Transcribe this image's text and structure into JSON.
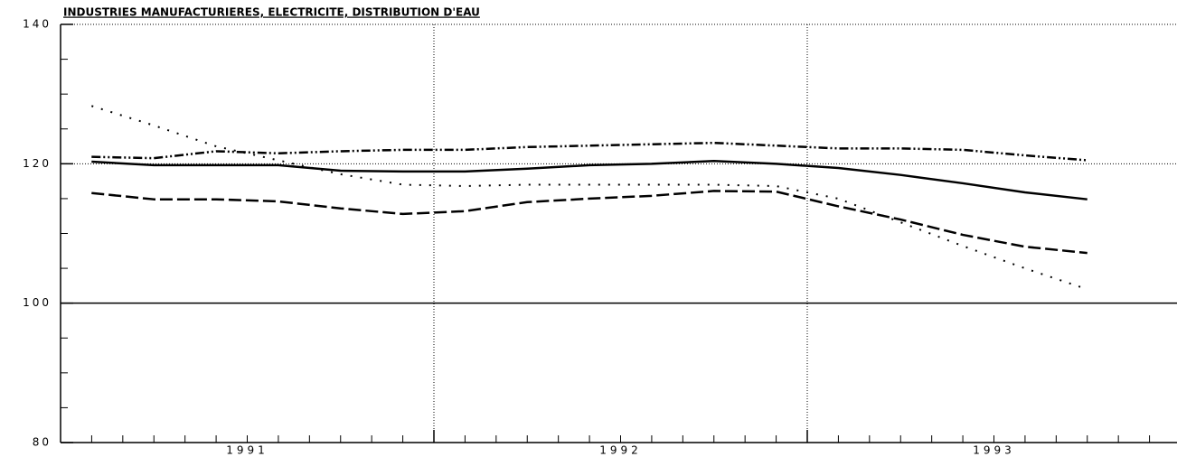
{
  "chart_data": {
    "type": "line",
    "title": "INDUSTRIES MANUFACTURIERES, ELECTRICITE, DISTRIBUTION D'EAU",
    "x": [
      1991.083,
      1991.25,
      1991.417,
      1991.583,
      1991.75,
      1991.917,
      1992.083,
      1992.25,
      1992.417,
      1992.583,
      1992.75,
      1992.917,
      1993.083,
      1993.25,
      1993.417,
      1993.583,
      1993.75
    ],
    "series": [
      {
        "color": "#000000",
        "dash": "solid",
        "values": [
          120.3,
          119.8,
          119.8,
          119.8,
          119.0,
          118.9,
          118.9,
          119.3,
          119.8,
          120.0,
          120.4,
          120.0,
          119.4,
          118.4,
          117.2,
          115.9,
          114.9
        ]
      },
      {
        "color": "#000000",
        "dash": "dashed",
        "values": [
          115.8,
          114.9,
          114.9,
          114.6,
          113.6,
          112.8,
          113.2,
          114.5,
          115.0,
          115.4,
          116.1,
          116.0,
          113.9,
          112.0,
          109.8,
          108.1,
          107.2
        ]
      },
      {
        "color": "#000000",
        "dash": "dashdotdot",
        "values": [
          121.0,
          120.8,
          121.8,
          121.5,
          121.8,
          122.0,
          122.0,
          122.4,
          122.6,
          122.8,
          123.0,
          122.6,
          122.2,
          122.2,
          122.0,
          121.2,
          120.5
        ]
      },
      {
        "color": "#000000",
        "dash": "dotted",
        "values": [
          128.3,
          125.5,
          122.5,
          120.5,
          118.5,
          117.0,
          116.8,
          117.0,
          117.0,
          117.0,
          117.0,
          116.8,
          115.0,
          111.6,
          108.2,
          105.0,
          102.0
        ]
      }
    ],
    "xlim": [
      1991,
      1994
    ],
    "xticks": [
      {
        "value": 1991.5,
        "label": "1991"
      },
      {
        "value": 1992.5,
        "label": "1992"
      },
      {
        "value": 1993.5,
        "label": "1993"
      }
    ],
    "xgrid": [
      1992,
      1993
    ],
    "ylim": [
      80,
      140
    ],
    "yticks": [
      80,
      100,
      120,
      140
    ],
    "grid": true
  }
}
